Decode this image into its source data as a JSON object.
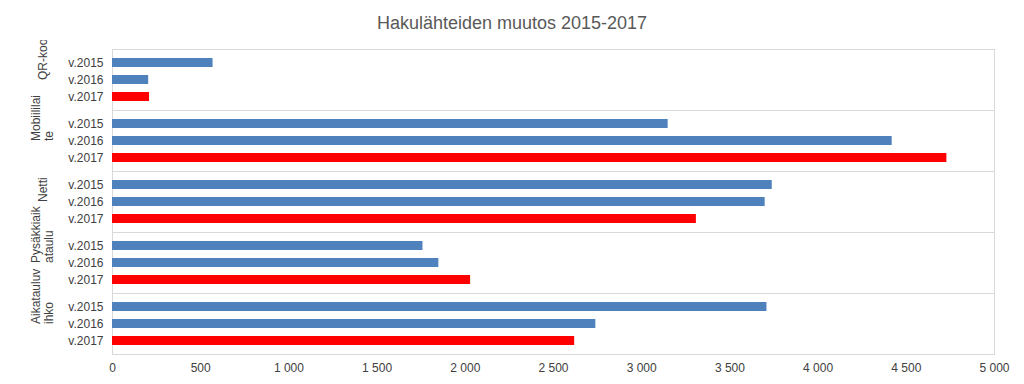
{
  "chart_data": {
    "type": "bar",
    "orientation": "horizontal",
    "title": "Hakulähteiden muutos 2015-2017",
    "categories": [
      "QR-koodi",
      "Mobiililaite",
      "Netti",
      "Pysäkkiaikataulu",
      "Aikatauluvihko"
    ],
    "series": [
      {
        "name": "v.2015",
        "color": "#4f81bd",
        "values": [
          570,
          3150,
          3740,
          1760,
          3710
        ]
      },
      {
        "name": "v.2016",
        "color": "#4f81bd",
        "values": [
          205,
          4420,
          3700,
          1850,
          2740
        ]
      },
      {
        "name": "v.2017",
        "color": "#ff0000",
        "values": [
          210,
          4730,
          3310,
          2030,
          2620
        ]
      }
    ],
    "xlim": [
      0,
      5000
    ],
    "xticks": [
      0,
      500,
      {
        "value": 1000,
        "label": "1 000"
      },
      {
        "value": 1500,
        "label": "1 500"
      },
      {
        "value": 2000,
        "label": "2 000"
      },
      {
        "value": 2500,
        "label": "2 500"
      },
      {
        "value": 3000,
        "label": "3 000"
      },
      {
        "value": 3500,
        "label": "3 500"
      },
      {
        "value": 4000,
        "label": "4 000"
      },
      {
        "value": 4500,
        "label": "4 500"
      },
      {
        "value": 5000,
        "label": "5 000"
      }
    ],
    "grid": false
  }
}
